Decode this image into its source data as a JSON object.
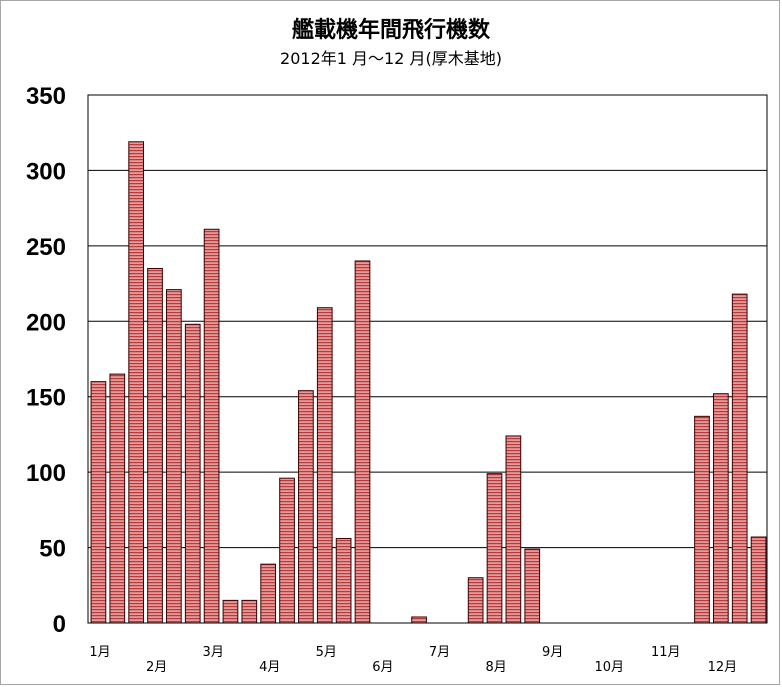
{
  "chart_data": {
    "type": "bar",
    "title": "艦載機年間飛行機数",
    "subtitle": "2012年1 月～12 月(厚木基地)",
    "ylim": [
      0,
      350
    ],
    "y_ticks": [
      0,
      50,
      100,
      150,
      200,
      250,
      300,
      350
    ],
    "grid": true,
    "month_labels": [
      "1月",
      "2月",
      "3月",
      "4月",
      "5月",
      "6月",
      "7月",
      "8月",
      "9月",
      "10月",
      "11月",
      "12月"
    ],
    "values": [
      160,
      165,
      319,
      235,
      221,
      198,
      261,
      15,
      15,
      39,
      96,
      154,
      209,
      56,
      240,
      0,
      0,
      4,
      0,
      0,
      30,
      99,
      124,
      49,
      0,
      0,
      0,
      0,
      0,
      0,
      0,
      0,
      137,
      152,
      218,
      57
    ],
    "colors": {
      "bar_fill": "#d98282",
      "bar_stripe": "#b03030",
      "bar_edge": "#3a0000",
      "grid": "#000000"
    }
  }
}
